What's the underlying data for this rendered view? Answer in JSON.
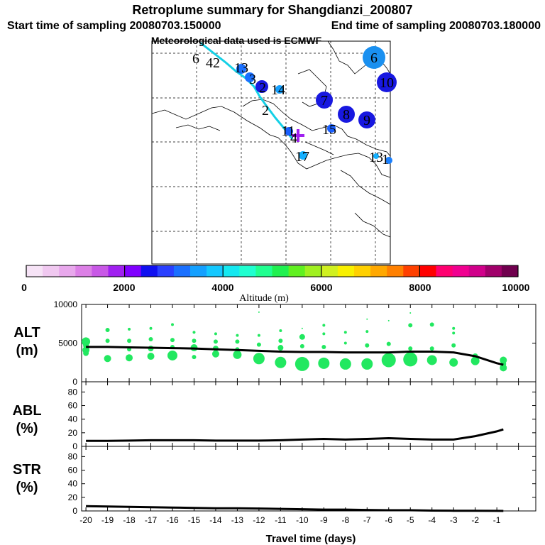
{
  "header": {
    "title": "Retroplume summary for Shangdianzi_200807",
    "start_label": "Start time of sampling 20080703.150000",
    "end_label": "End time of sampling 20080703.180000",
    "met_label": "Meteorological data used is ECMWF"
  },
  "map": {
    "cluster_labels": [
      "6",
      "42",
      "13",
      "3",
      "2",
      "14",
      "7",
      "10",
      "6",
      "8",
      "9",
      "2",
      "15",
      "11",
      "4",
      "17",
      "13",
      "1"
    ]
  },
  "colorbar": {
    "title": "Altitude (m)",
    "tick_labels": [
      "0",
      "2000",
      "4000",
      "6000",
      "8000",
      "10000"
    ],
    "colors": [
      "#f6e3f6",
      "#f0c8f0",
      "#e8a8ec",
      "#dc80e6",
      "#c858e6",
      "#a020f0",
      "#8000ff",
      "#1010f0",
      "#2a40ff",
      "#1a70ff",
      "#14a0ff",
      "#14c8ff",
      "#14e8f0",
      "#20ffd0",
      "#20ff90",
      "#20f050",
      "#60f020",
      "#a0f020",
      "#d0f020",
      "#f8f000",
      "#ffd000",
      "#ffa800",
      "#ff8000",
      "#ff4000",
      "#ff0000",
      "#ff0070",
      "#f00090",
      "#d0008a",
      "#a0006a",
      "#70004e"
    ]
  },
  "chart_data": [
    {
      "type": "line",
      "panel": "ALT",
      "ylabel_line1": "ALT",
      "ylabel_line2": "(m)",
      "xlim": [
        -20.2,
        0.8
      ],
      "ylim": [
        0,
        10000
      ],
      "ytick_labels": [
        "0",
        "5000",
        "10000"
      ],
      "x": [
        -20,
        -19,
        -18,
        -17,
        -16,
        -15,
        -14,
        -13,
        -12,
        -11,
        -10,
        -9,
        -8,
        -7,
        -6,
        -5,
        -4,
        -3,
        -2,
        -1,
        -0.7
      ],
      "y": [
        4500,
        4500,
        4450,
        4400,
        4350,
        4300,
        4200,
        4100,
        4000,
        3900,
        3850,
        3850,
        3800,
        3800,
        3800,
        3900,
        3900,
        3800,
        3300,
        2400,
        2200
      ],
      "points": [
        {
          "x": -20,
          "y": 5200,
          "s": 6
        },
        {
          "x": -20,
          "y": 4700,
          "s": 4
        },
        {
          "x": -20,
          "y": 4100,
          "s": 5
        },
        {
          "x": -20,
          "y": 3700,
          "s": 4
        },
        {
          "x": -19,
          "y": 6700,
          "s": 3
        },
        {
          "x": -19,
          "y": 5300,
          "s": 3
        },
        {
          "x": -19,
          "y": 3000,
          "s": 5
        },
        {
          "x": -18,
          "y": 6800,
          "s": 2
        },
        {
          "x": -18,
          "y": 5300,
          "s": 3
        },
        {
          "x": -18,
          "y": 4200,
          "s": 3
        },
        {
          "x": -18,
          "y": 3100,
          "s": 5
        },
        {
          "x": -17,
          "y": 6900,
          "s": 2
        },
        {
          "x": -17,
          "y": 5500,
          "s": 3
        },
        {
          "x": -17,
          "y": 4300,
          "s": 4
        },
        {
          "x": -17,
          "y": 3300,
          "s": 5
        },
        {
          "x": -16,
          "y": 7400,
          "s": 2
        },
        {
          "x": -16,
          "y": 5400,
          "s": 3
        },
        {
          "x": -16,
          "y": 4500,
          "s": 3
        },
        {
          "x": -16,
          "y": 3400,
          "s": 7
        },
        {
          "x": -15,
          "y": 6400,
          "s": 2
        },
        {
          "x": -15,
          "y": 5300,
          "s": 3
        },
        {
          "x": -15,
          "y": 4400,
          "s": 5
        },
        {
          "x": -15,
          "y": 3200,
          "s": 3
        },
        {
          "x": -14,
          "y": 6200,
          "s": 2
        },
        {
          "x": -14,
          "y": 5200,
          "s": 3
        },
        {
          "x": -14,
          "y": 4300,
          "s": 4
        },
        {
          "x": -14,
          "y": 3600,
          "s": 5
        },
        {
          "x": -13,
          "y": 6000,
          "s": 2
        },
        {
          "x": -13,
          "y": 5200,
          "s": 3
        },
        {
          "x": -13,
          "y": 4200,
          "s": 3
        },
        {
          "x": -13,
          "y": 3500,
          "s": 6
        },
        {
          "x": -12,
          "y": 9000,
          "s": 1
        },
        {
          "x": -12,
          "y": 6000,
          "s": 2
        },
        {
          "x": -12,
          "y": 4800,
          "s": 3
        },
        {
          "x": -12,
          "y": 3000,
          "s": 8
        },
        {
          "x": -11,
          "y": 6600,
          "s": 2
        },
        {
          "x": -11,
          "y": 5300,
          "s": 3
        },
        {
          "x": -11,
          "y": 4400,
          "s": 4
        },
        {
          "x": -11,
          "y": 2500,
          "s": 8
        },
        {
          "x": -10,
          "y": 6900,
          "s": 1
        },
        {
          "x": -10,
          "y": 5800,
          "s": 4
        },
        {
          "x": -10,
          "y": 4600,
          "s": 3
        },
        {
          "x": -10,
          "y": 2300,
          "s": 10
        },
        {
          "x": -9,
          "y": 7300,
          "s": 2
        },
        {
          "x": -9,
          "y": 6200,
          "s": 2
        },
        {
          "x": -9,
          "y": 4500,
          "s": 3
        },
        {
          "x": -9,
          "y": 2400,
          "s": 8
        },
        {
          "x": -8,
          "y": 6400,
          "s": 2
        },
        {
          "x": -8,
          "y": 5000,
          "s": 2
        },
        {
          "x": -8,
          "y": 2300,
          "s": 8
        },
        {
          "x": -7,
          "y": 8100,
          "s": 1
        },
        {
          "x": -7,
          "y": 6500,
          "s": 2
        },
        {
          "x": -7,
          "y": 4700,
          "s": 3
        },
        {
          "x": -7,
          "y": 2300,
          "s": 8
        },
        {
          "x": -6,
          "y": 7900,
          "s": 1
        },
        {
          "x": -6,
          "y": 4900,
          "s": 3
        },
        {
          "x": -6,
          "y": 2800,
          "s": 10
        },
        {
          "x": -5,
          "y": 8900,
          "s": 1
        },
        {
          "x": -5,
          "y": 7300,
          "s": 3
        },
        {
          "x": -5,
          "y": 4300,
          "s": 3
        },
        {
          "x": -5,
          "y": 2900,
          "s": 10
        },
        {
          "x": -4,
          "y": 7400,
          "s": 3
        },
        {
          "x": -4,
          "y": 4300,
          "s": 3
        },
        {
          "x": -4,
          "y": 2800,
          "s": 7
        },
        {
          "x": -3,
          "y": 6900,
          "s": 2
        },
        {
          "x": -3,
          "y": 6300,
          "s": 2
        },
        {
          "x": -3,
          "y": 4700,
          "s": 3
        },
        {
          "x": -3,
          "y": 2500,
          "s": 6
        },
        {
          "x": -2,
          "y": 3300,
          "s": 4
        },
        {
          "x": -2,
          "y": 2700,
          "s": 6
        },
        {
          "x": -0.7,
          "y": 2800,
          "s": 5
        },
        {
          "x": -0.7,
          "y": 2300,
          "s": 4
        },
        {
          "x": -0.7,
          "y": 1800,
          "s": 5
        }
      ]
    },
    {
      "type": "line",
      "panel": "ABL",
      "ylabel_line1": "ABL",
      "ylabel_line2": "(%)",
      "xlim": [
        -20.2,
        0.8
      ],
      "ylim": [
        0,
        95
      ],
      "ytick_labels": [
        "0",
        "20",
        "40",
        "60",
        "80"
      ],
      "x": [
        -20,
        -19,
        -18,
        -17,
        -16,
        -15,
        -14,
        -13,
        -12,
        -11,
        -10,
        -9,
        -8,
        -7,
        -6,
        -5,
        -4,
        -3,
        -2,
        -1,
        -0.7
      ],
      "y": [
        8,
        8,
        8.5,
        9,
        9,
        9,
        8.5,
        8.5,
        8.5,
        9,
        10,
        11,
        10,
        11,
        12,
        11,
        10,
        10,
        15,
        22,
        25
      ]
    },
    {
      "type": "line",
      "panel": "STR",
      "ylabel_line1": "STR",
      "ylabel_line2": "(%)",
      "xlim": [
        -20.2,
        0.8
      ],
      "ylim": [
        0,
        95
      ],
      "ytick_labels": [
        "0",
        "20",
        "40",
        "60",
        "80"
      ],
      "x": [
        -20,
        -19,
        -18,
        -17,
        -16,
        -15,
        -14,
        -13,
        -12,
        -11,
        -10,
        -9,
        -8,
        -7,
        -6,
        -5,
        -4,
        -3,
        -2,
        -1,
        -0.7
      ],
      "y": [
        7,
        6.5,
        6,
        5.5,
        5,
        4.5,
        4,
        4,
        3.5,
        3,
        2.5,
        2,
        2,
        1.5,
        1,
        1,
        0.5,
        0.3,
        0.2,
        0.1,
        0
      ],
      "xlabel": "Travel time (days)",
      "xtick_labels": [
        "-20",
        "-19",
        "-18",
        "-17",
        "-16",
        "-15",
        "-14",
        "-13",
        "-12",
        "-11",
        "-10",
        "-9",
        "-8",
        "-7",
        "-6",
        "-5",
        "-4",
        "-3",
        "-2",
        "-1"
      ]
    }
  ]
}
